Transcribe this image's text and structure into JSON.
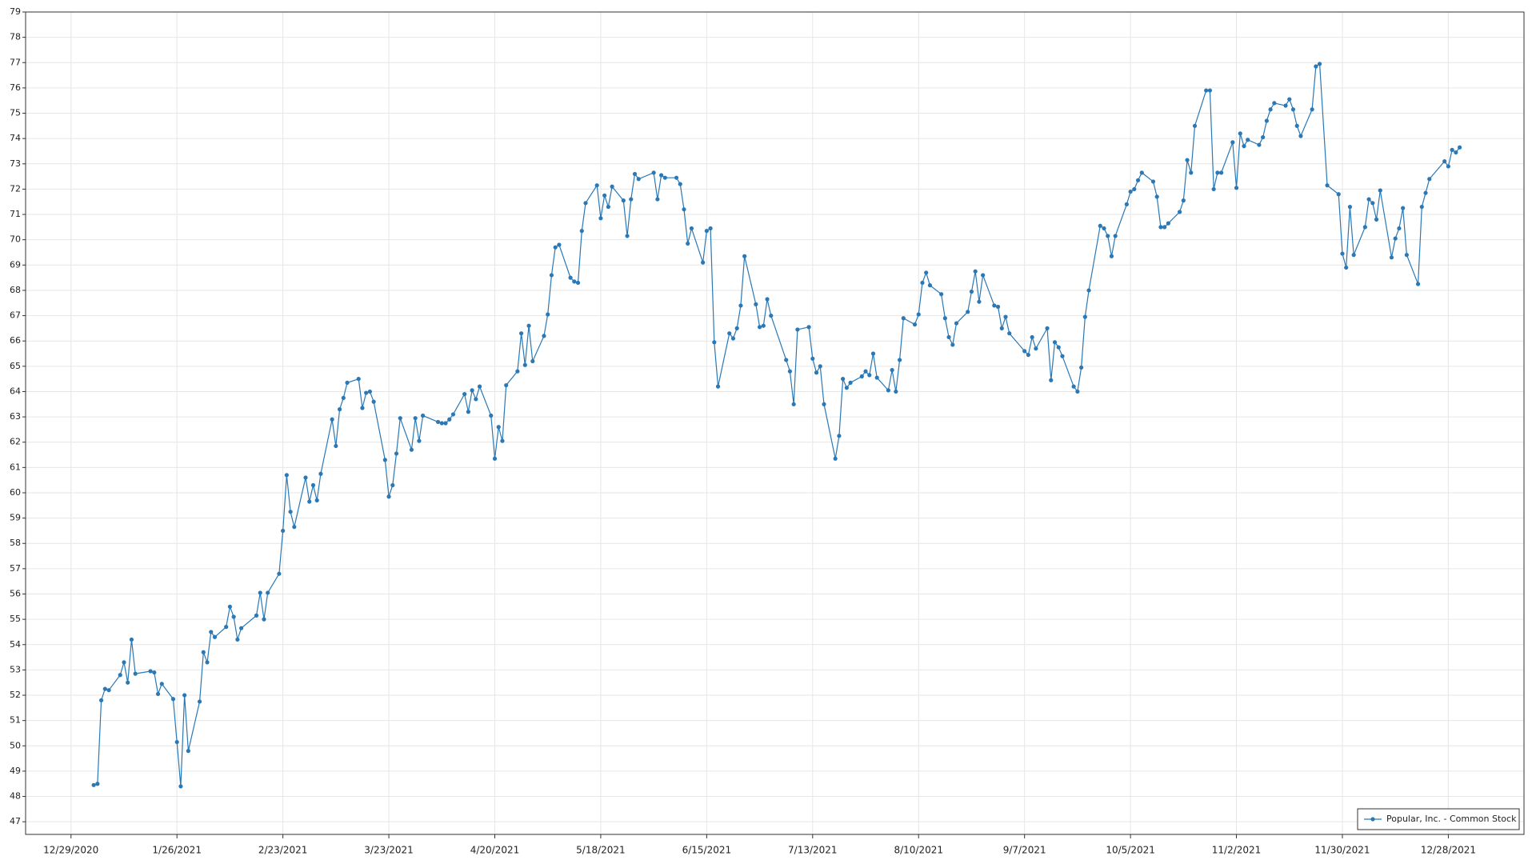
{
  "chart_data": {
    "type": "line",
    "x": [
      "1/4/2021",
      "1/5/2021",
      "1/6/2021",
      "1/7/2021",
      "1/8/2021",
      "1/11/2021",
      "1/12/2021",
      "1/13/2021",
      "1/14/2021",
      "1/15/2021",
      "1/19/2021",
      "1/20/2021",
      "1/21/2021",
      "1/22/2021",
      "1/25/2021",
      "1/26/2021",
      "1/27/2021",
      "1/28/2021",
      "1/29/2021",
      "2/1/2021",
      "2/2/2021",
      "2/3/2021",
      "2/4/2021",
      "2/5/2021",
      "2/8/2021",
      "2/9/2021",
      "2/10/2021",
      "2/11/2021",
      "2/12/2021",
      "2/16/2021",
      "2/17/2021",
      "2/18/2021",
      "2/19/2021",
      "2/22/2021",
      "2/23/2021",
      "2/24/2021",
      "2/25/2021",
      "2/26/2021",
      "3/1/2021",
      "3/2/2021",
      "3/3/2021",
      "3/4/2021",
      "3/5/2021",
      "3/8/2021",
      "3/9/2021",
      "3/10/2021",
      "3/11/2021",
      "3/12/2021",
      "3/15/2021",
      "3/16/2021",
      "3/17/2021",
      "3/18/2021",
      "3/19/2021",
      "3/22/2021",
      "3/23/2021",
      "3/24/2021",
      "3/25/2021",
      "3/26/2021",
      "3/29/2021",
      "3/30/2021",
      "3/31/2021",
      "4/1/2021",
      "4/5/2021",
      "4/6/2021",
      "4/7/2021",
      "4/8/2021",
      "4/9/2021",
      "4/12/2021",
      "4/13/2021",
      "4/14/2021",
      "4/15/2021",
      "4/16/2021",
      "4/19/2021",
      "4/20/2021",
      "4/21/2021",
      "4/22/2021",
      "4/23/2021",
      "4/26/2021",
      "4/27/2021",
      "4/28/2021",
      "4/29/2021",
      "4/30/2021",
      "5/3/2021",
      "5/4/2021",
      "5/5/2021",
      "5/6/2021",
      "5/7/2021",
      "5/10/2021",
      "5/11/2021",
      "5/12/2021",
      "5/13/2021",
      "5/14/2021",
      "5/17/2021",
      "5/18/2021",
      "5/19/2021",
      "5/20/2021",
      "5/21/2021",
      "5/24/2021",
      "5/25/2021",
      "5/26/2021",
      "5/27/2021",
      "5/28/2021",
      "6/1/2021",
      "6/2/2021",
      "6/3/2021",
      "6/4/2021",
      "6/7/2021",
      "6/8/2021",
      "6/9/2021",
      "6/10/2021",
      "6/11/2021",
      "6/14/2021",
      "6/15/2021",
      "6/16/2021",
      "6/17/2021",
      "6/18/2021",
      "6/21/2021",
      "6/22/2021",
      "6/23/2021",
      "6/24/2021",
      "6/25/2021",
      "6/28/2021",
      "6/29/2021",
      "6/30/2021",
      "7/1/2021",
      "7/2/2021",
      "7/6/2021",
      "7/7/2021",
      "7/8/2021",
      "7/9/2021",
      "7/12/2021",
      "7/13/2021",
      "7/14/2021",
      "7/15/2021",
      "7/16/2021",
      "7/19/2021",
      "7/20/2021",
      "7/21/2021",
      "7/22/2021",
      "7/23/2021",
      "7/26/2021",
      "7/27/2021",
      "7/28/2021",
      "7/29/2021",
      "7/30/2021",
      "8/2/2021",
      "8/3/2021",
      "8/4/2021",
      "8/5/2021",
      "8/6/2021",
      "8/9/2021",
      "8/10/2021",
      "8/11/2021",
      "8/12/2021",
      "8/13/2021",
      "8/16/2021",
      "8/17/2021",
      "8/18/2021",
      "8/19/2021",
      "8/20/2021",
      "8/23/2021",
      "8/24/2021",
      "8/25/2021",
      "8/26/2021",
      "8/27/2021",
      "8/30/2021",
      "8/31/2021",
      "9/1/2021",
      "9/2/2021",
      "9/3/2021",
      "9/7/2021",
      "9/8/2021",
      "9/9/2021",
      "9/10/2021",
      "9/13/2021",
      "9/14/2021",
      "9/15/2021",
      "9/16/2021",
      "9/17/2021",
      "9/20/2021",
      "9/21/2021",
      "9/22/2021",
      "9/23/2021",
      "9/24/2021",
      "9/27/2021",
      "9/28/2021",
      "9/29/2021",
      "9/30/2021",
      "10/1/2021",
      "10/4/2021",
      "10/5/2021",
      "10/6/2021",
      "10/7/2021",
      "10/8/2021",
      "10/11/2021",
      "10/12/2021",
      "10/13/2021",
      "10/14/2021",
      "10/15/2021",
      "10/18/2021",
      "10/19/2021",
      "10/20/2021",
      "10/21/2021",
      "10/22/2021",
      "10/25/2021",
      "10/26/2021",
      "10/27/2021",
      "10/28/2021",
      "10/29/2021",
      "11/1/2021",
      "11/2/2021",
      "11/3/2021",
      "11/4/2021",
      "11/5/2021",
      "11/8/2021",
      "11/9/2021",
      "11/10/2021",
      "11/11/2021",
      "11/12/2021",
      "11/15/2021",
      "11/16/2021",
      "11/17/2021",
      "11/18/2021",
      "11/19/2021",
      "11/22/2021",
      "11/23/2021",
      "11/24/2021",
      "11/26/2021",
      "11/29/2021",
      "11/30/2021",
      "12/1/2021",
      "12/2/2021",
      "12/3/2021",
      "12/6/2021",
      "12/7/2021",
      "12/8/2021",
      "12/9/2021",
      "12/10/2021",
      "12/13/2021",
      "12/14/2021",
      "12/15/2021",
      "12/16/2021",
      "12/17/2021",
      "12/20/2021",
      "12/21/2021",
      "12/22/2021",
      "12/23/2021",
      "12/27/2021",
      "12/28/2021",
      "12/29/2021",
      "12/30/2021",
      "12/31/2021"
    ],
    "series": [
      {
        "name": "Popular, Inc. - Common Stock",
        "color": "#2a78b5",
        "values": [
          48.45,
          48.5,
          51.8,
          52.25,
          52.2,
          52.8,
          53.3,
          52.5,
          54.2,
          52.85,
          52.95,
          52.9,
          52.05,
          52.45,
          51.85,
          50.15,
          48.4,
          52.0,
          49.8,
          51.75,
          53.7,
          53.3,
          54.5,
          54.3,
          54.7,
          55.5,
          55.1,
          54.2,
          54.65,
          55.15,
          56.05,
          55.0,
          56.05,
          56.8,
          58.5,
          60.7,
          59.25,
          58.65,
          60.6,
          59.65,
          60.3,
          59.7,
          60.75,
          62.9,
          61.85,
          63.3,
          63.75,
          64.35,
          64.5,
          63.35,
          63.95,
          64.0,
          63.6,
          61.3,
          59.85,
          60.3,
          61.55,
          62.95,
          61.7,
          62.95,
          62.05,
          63.05,
          62.8,
          62.75,
          62.75,
          62.9,
          63.1,
          63.9,
          63.2,
          64.05,
          63.7,
          64.2,
          63.05,
          61.35,
          62.6,
          62.05,
          64.25,
          64.8,
          66.3,
          65.05,
          66.6,
          65.2,
          66.2,
          67.05,
          68.6,
          69.7,
          69.8,
          68.5,
          68.35,
          68.3,
          70.35,
          71.45,
          72.15,
          70.85,
          71.75,
          71.3,
          72.1,
          71.55,
          70.15,
          71.6,
          72.6,
          72.4,
          72.65,
          71.6,
          72.55,
          72.45,
          72.45,
          72.2,
          71.2,
          69.85,
          70.45,
          69.1,
          70.35,
          70.45,
          65.95,
          64.2,
          66.3,
          66.1,
          66.5,
          67.4,
          69.35,
          67.45,
          66.55,
          66.6,
          67.65,
          67.0,
          65.25,
          64.8,
          63.5,
          66.45,
          66.55,
          65.3,
          64.75,
          65.0,
          63.5,
          61.35,
          62.25,
          64.5,
          64.15,
          64.35,
          64.6,
          64.8,
          64.65,
          65.5,
          64.55,
          64.05,
          64.85,
          64.0,
          65.25,
          66.9,
          66.65,
          67.05,
          68.3,
          68.7,
          68.2,
          67.85,
          66.9,
          66.15,
          65.85,
          66.7,
          67.15,
          67.95,
          68.75,
          67.55,
          68.6,
          67.4,
          67.35,
          66.5,
          66.95,
          66.3,
          65.6,
          65.45,
          66.15,
          65.7,
          66.5,
          64.45,
          65.95,
          65.75,
          65.4,
          64.2,
          64.0,
          64.95,
          66.95,
          68.0,
          70.55,
          70.45,
          70.15,
          69.35,
          70.15,
          71.4,
          71.9,
          72.0,
          72.35,
          72.65,
          72.3,
          71.7,
          70.5,
          70.5,
          70.65,
          71.1,
          71.55,
          73.15,
          72.65,
          74.5,
          75.9,
          75.9,
          72.0,
          72.65,
          72.65,
          73.85,
          72.05,
          74.2,
          73.7,
          73.95,
          73.75,
          74.05,
          74.7,
          75.15,
          75.4,
          75.3,
          75.55,
          75.15,
          74.5,
          74.1,
          75.15,
          76.85,
          76.95,
          72.15,
          71.8,
          69.45,
          68.9,
          71.3,
          69.4,
          70.5,
          71.6,
          71.45,
          70.8,
          71.95,
          69.3,
          70.05,
          70.45,
          71.25,
          69.4,
          68.25,
          71.3,
          71.85,
          72.4,
          73.1,
          72.9,
          73.55,
          73.45,
          73.65
        ]
      }
    ],
    "xlim": [
      "12/17/2020",
      "1/17/2022"
    ],
    "xticks": [
      "12/29/2020",
      "1/26/2021",
      "2/23/2021",
      "3/23/2021",
      "4/20/2021",
      "5/18/2021",
      "6/15/2021",
      "7/13/2021",
      "8/10/2021",
      "9/7/2021",
      "10/5/2021",
      "11/2/2021",
      "11/30/2021",
      "12/28/2021"
    ],
    "ylim": [
      46.5,
      79
    ],
    "yticks": [
      47,
      48,
      49,
      50,
      51,
      52,
      53,
      54,
      55,
      56,
      57,
      58,
      59,
      60,
      61,
      62,
      63,
      64,
      65,
      66,
      67,
      68,
      69,
      70,
      71,
      72,
      73,
      74,
      75,
      76,
      77,
      78,
      79
    ],
    "grid": true,
    "legend": "bottom-right"
  }
}
